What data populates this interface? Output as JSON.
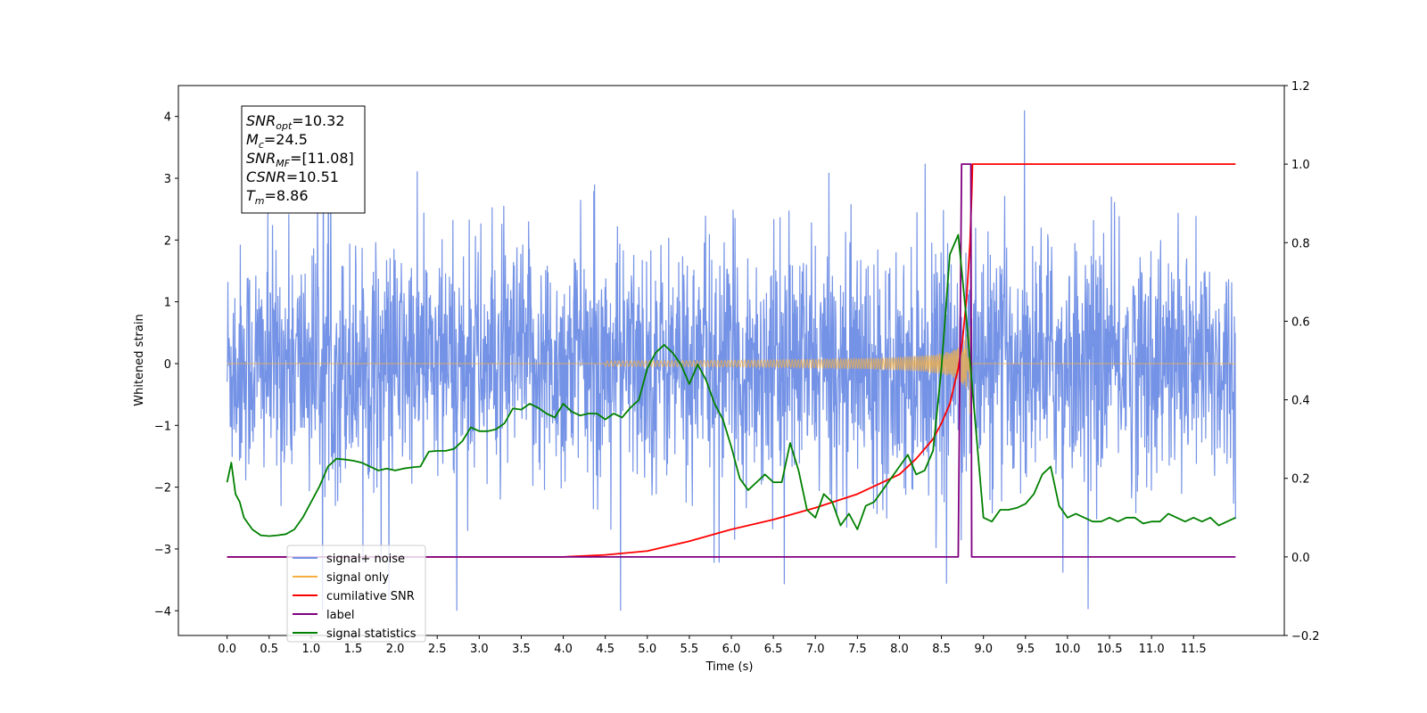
{
  "chart_data": {
    "type": "line",
    "xlabel": "Time (s)",
    "ylabel_left": "Whitened strain",
    "ylabel_right": "",
    "xlim": [
      -0.58,
      12.58
    ],
    "ylim_left": [
      -4.4,
      4.5
    ],
    "ylim_right": [
      -0.2,
      1.2
    ],
    "x_ticks": [
      "0.0",
      "0.5",
      "1.0",
      "1.5",
      "2.0",
      "2.5",
      "3.0",
      "3.5",
      "4.0",
      "4.5",
      "5.0",
      "5.5",
      "6.0",
      "6.5",
      "7.0",
      "7.5",
      "8.0",
      "8.5",
      "9.0",
      "9.5",
      "10.0",
      "10.5",
      "11.0",
      "11.5"
    ],
    "y_ticks_left": [
      "4",
      "3",
      "2",
      "1",
      "0",
      "−1",
      "−2",
      "−3",
      "−4"
    ],
    "y_ticks_right": [
      "1.2",
      "1.0",
      "0.8",
      "0.6",
      "0.4",
      "0.2",
      "0.0",
      "−0.2"
    ],
    "grid": false,
    "legend_position": "lower-left",
    "annotation": {
      "lines": [
        {
          "symbol": "SNR",
          "sub": "opt",
          "value": "=10.32"
        },
        {
          "symbol": "M",
          "sub": "c",
          "value": "=24.5"
        },
        {
          "symbol": "SNR",
          "sub": "MF",
          "value": "=[11.08]"
        },
        {
          "symbol": "CSNR",
          "sub": "",
          "value": "=10.51"
        },
        {
          "symbol": "T",
          "sub": "m",
          "value": "=8.86"
        }
      ]
    },
    "series": [
      {
        "name": "signal+ noise",
        "color": "#7593e6",
        "axis": "left",
        "kind": "noise_band",
        "x_range": [
          0,
          12
        ],
        "approx_amplitude": 2.3
      },
      {
        "name": "signal only",
        "color": "#f5b041",
        "axis": "left",
        "kind": "chirp",
        "x_range": [
          0,
          12
        ],
        "merger_time": 8.86,
        "peak_amplitude": 0.85
      },
      {
        "name": "cumilative SNR",
        "color": "#ff0000",
        "axis": "right",
        "x": [
          0,
          4.0,
          4.5,
          5.0,
          5.5,
          6.0,
          6.5,
          7.0,
          7.5,
          8.0,
          8.2,
          8.4,
          8.5,
          8.6,
          8.7,
          8.75,
          8.8,
          8.84,
          8.86,
          8.87,
          9.0,
          10.0,
          11.0,
          12.0
        ],
        "y": [
          0,
          0,
          0.005,
          0.015,
          0.04,
          0.07,
          0.095,
          0.125,
          0.16,
          0.21,
          0.25,
          0.3,
          0.34,
          0.39,
          0.48,
          0.55,
          0.66,
          0.8,
          0.92,
          1.0,
          1.0,
          1.0,
          1.0,
          1.0
        ]
      },
      {
        "name": "label",
        "color": "#800080",
        "axis": "right",
        "x": [
          0,
          8.69,
          8.7,
          8.74,
          8.85,
          8.86,
          12.0
        ],
        "y": [
          0,
          0,
          0.0,
          1.0,
          1.0,
          0,
          0
        ]
      },
      {
        "name": "signal statistics",
        "color": "#008000",
        "axis": "right",
        "x": [
          0,
          0.05,
          0.1,
          0.15,
          0.2,
          0.3,
          0.4,
          0.5,
          0.6,
          0.7,
          0.8,
          0.9,
          1.0,
          1.1,
          1.2,
          1.3,
          1.4,
          1.5,
          1.6,
          1.7,
          1.8,
          1.9,
          2.0,
          2.1,
          2.2,
          2.3,
          2.4,
          2.5,
          2.6,
          2.7,
          2.8,
          2.9,
          3.0,
          3.1,
          3.2,
          3.3,
          3.4,
          3.5,
          3.6,
          3.7,
          3.8,
          3.9,
          4.0,
          4.1,
          4.2,
          4.3,
          4.4,
          4.5,
          4.6,
          4.7,
          4.8,
          4.9,
          5.0,
          5.1,
          5.2,
          5.3,
          5.4,
          5.5,
          5.6,
          5.7,
          5.8,
          5.9,
          6.0,
          6.1,
          6.2,
          6.3,
          6.4,
          6.5,
          6.6,
          6.7,
          6.8,
          6.9,
          7.0,
          7.1,
          7.2,
          7.3,
          7.4,
          7.5,
          7.6,
          7.7,
          7.8,
          7.9,
          8.0,
          8.1,
          8.2,
          8.3,
          8.4,
          8.5,
          8.6,
          8.7,
          8.8,
          8.9,
          9.0,
          9.1,
          9.2,
          9.3,
          9.4,
          9.5,
          9.6,
          9.7,
          9.8,
          9.9,
          10.0,
          10.1,
          10.2,
          10.3,
          10.4,
          10.5,
          10.6,
          10.7,
          10.8,
          10.9,
          11.0,
          11.1,
          11.2,
          11.3,
          11.4,
          11.5,
          11.6,
          11.7,
          11.8,
          11.9,
          12.0
        ],
        "y": [
          0.19,
          0.24,
          0.16,
          0.14,
          0.1,
          0.07,
          0.055,
          0.053,
          0.055,
          0.058,
          0.07,
          0.1,
          0.14,
          0.18,
          0.23,
          0.25,
          0.248,
          0.245,
          0.24,
          0.23,
          0.22,
          0.225,
          0.22,
          0.225,
          0.228,
          0.23,
          0.268,
          0.27,
          0.27,
          0.275,
          0.295,
          0.33,
          0.32,
          0.32,
          0.325,
          0.34,
          0.378,
          0.375,
          0.39,
          0.38,
          0.365,
          0.355,
          0.39,
          0.37,
          0.36,
          0.365,
          0.365,
          0.35,
          0.365,
          0.355,
          0.38,
          0.4,
          0.48,
          0.52,
          0.54,
          0.52,
          0.49,
          0.44,
          0.49,
          0.45,
          0.39,
          0.35,
          0.28,
          0.2,
          0.17,
          0.19,
          0.21,
          0.19,
          0.19,
          0.29,
          0.22,
          0.12,
          0.1,
          0.16,
          0.14,
          0.08,
          0.11,
          0.07,
          0.13,
          0.14,
          0.17,
          0.2,
          0.23,
          0.26,
          0.21,
          0.22,
          0.27,
          0.48,
          0.77,
          0.82,
          0.6,
          0.35,
          0.1,
          0.09,
          0.12,
          0.12,
          0.125,
          0.135,
          0.16,
          0.21,
          0.23,
          0.13,
          0.1,
          0.11,
          0.1,
          0.09,
          0.09,
          0.1,
          0.09,
          0.1,
          0.1,
          0.085,
          0.09,
          0.09,
          0.11,
          0.1,
          0.09,
          0.1,
          0.09,
          0.1,
          0.08,
          0.09,
          0.1
        ]
      }
    ]
  }
}
